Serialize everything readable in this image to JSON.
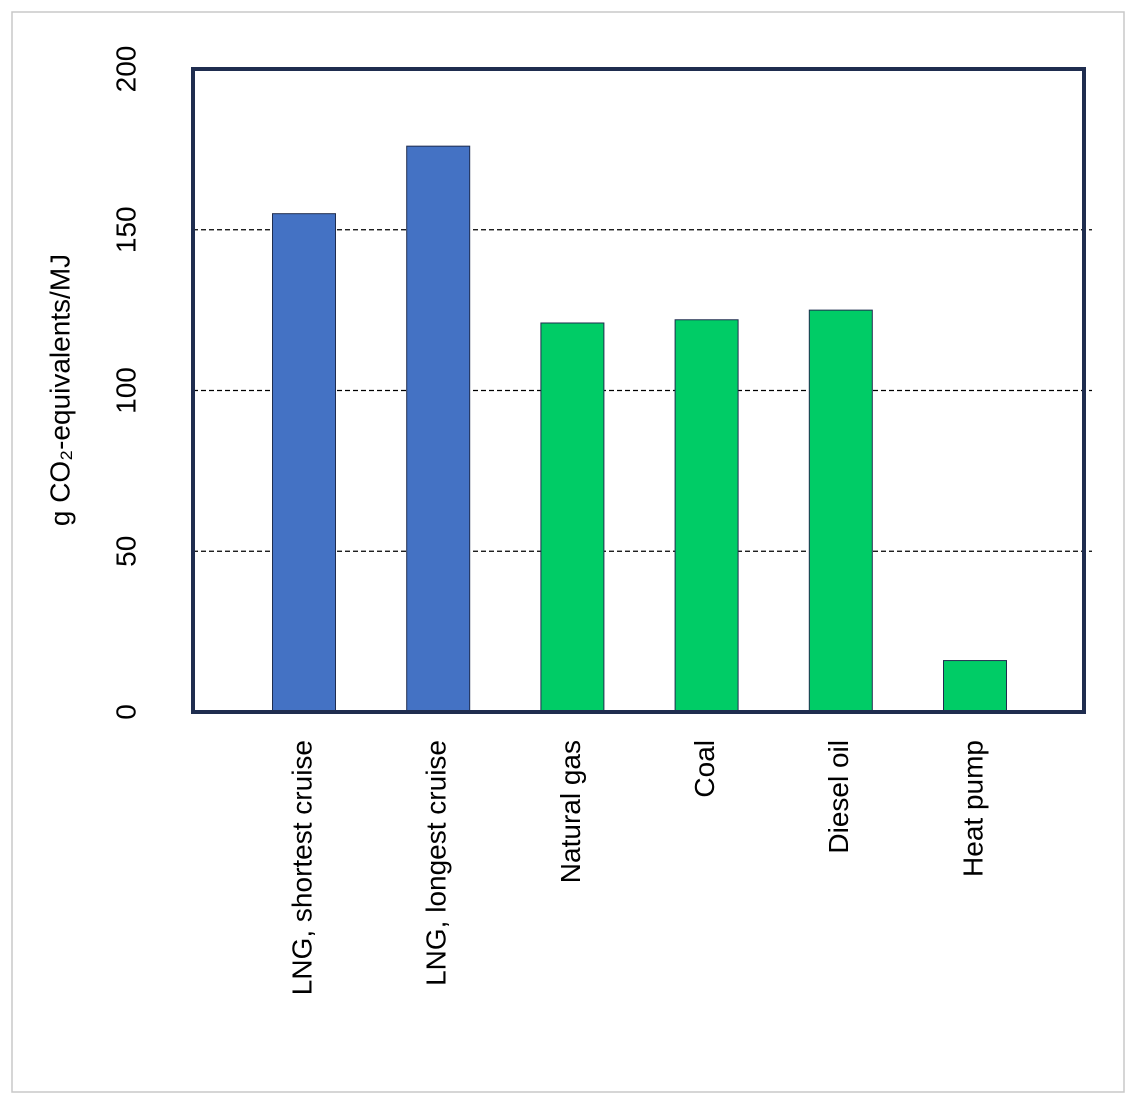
{
  "chart_data": {
    "type": "bar",
    "y_label": "g CO₂-equivalents/MJ",
    "categories": [
      "LNG, shortest cruise",
      "LNG, longest cruise",
      "Natural gas",
      "Coal",
      "Diesel oil",
      "Heat pump"
    ],
    "values": [
      155,
      176,
      121,
      122,
      125,
      16
    ],
    "colors": [
      "#4472c4",
      "#4472c4",
      "#00cc66",
      "#00cc66",
      "#00cc66",
      "#00cc66"
    ],
    "ylim": [
      0,
      200
    ],
    "yticks": [
      0,
      50,
      100,
      150,
      200
    ],
    "grid": true
  }
}
